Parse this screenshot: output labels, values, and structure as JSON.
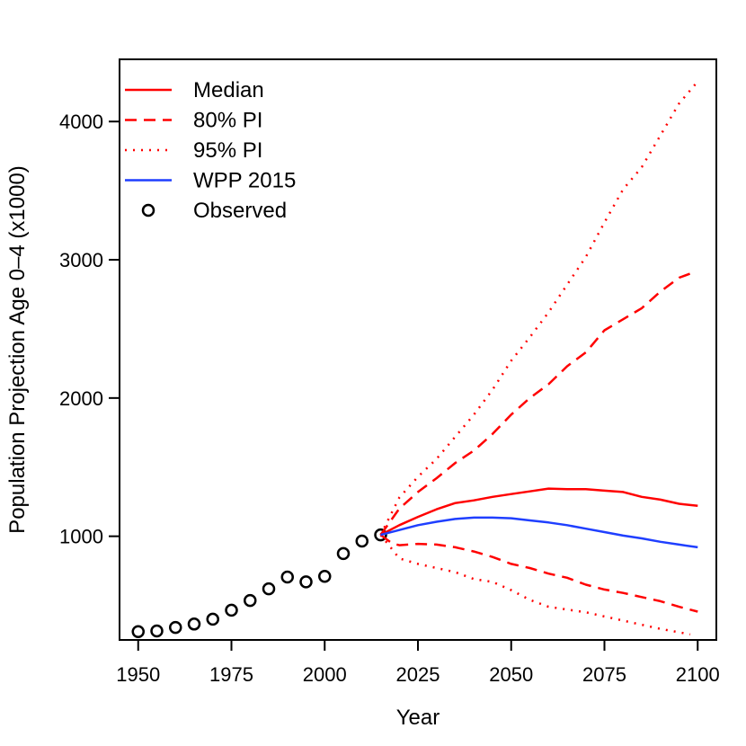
{
  "chart_data": {
    "type": "line",
    "xlabel": "Year",
    "ylabel": "Population Projection Age 0–4 (x1000)",
    "xlim": [
      1945,
      2105
    ],
    "ylim": [
      250,
      4450
    ],
    "x_ticks": [
      1950,
      1975,
      2000,
      2025,
      2050,
      2075,
      2100
    ],
    "y_ticks": [
      1000,
      2000,
      3000,
      4000
    ],
    "grid": false,
    "legend": {
      "position": "top-left",
      "entries": [
        {
          "label": "Median",
          "color": "#ff0000",
          "style": "solid",
          "marker": "none"
        },
        {
          "label": "80% PI",
          "color": "#ff0000",
          "style": "dashed",
          "marker": "none"
        },
        {
          "label": "95% PI",
          "color": "#ff0000",
          "style": "dotted",
          "marker": "none"
        },
        {
          "label": "WPP 2015",
          "color": "#1f3fff",
          "style": "solid",
          "marker": "none"
        },
        {
          "label": "Observed",
          "color": "#000000",
          "style": "none",
          "marker": "circle"
        }
      ]
    },
    "series": [
      {
        "name": "Observed",
        "color": "#000000",
        "style": "points",
        "x": [
          1950,
          1955,
          1960,
          1965,
          1970,
          1975,
          1980,
          1985,
          1990,
          1995,
          2000,
          2005,
          2010,
          2015
        ],
        "y": [
          310,
          315,
          340,
          365,
          400,
          465,
          535,
          620,
          705,
          670,
          710,
          875,
          965,
          1010
        ]
      },
      {
        "name": "Median",
        "color": "#ff0000",
        "style": "solid",
        "x": [
          2015,
          2020,
          2025,
          2030,
          2035,
          2040,
          2045,
          2050,
          2055,
          2060,
          2065,
          2070,
          2075,
          2080,
          2085,
          2090,
          2095,
          2100
        ],
        "y": [
          1010,
          1080,
          1140,
          1195,
          1240,
          1260,
          1285,
          1305,
          1325,
          1345,
          1340,
          1340,
          1330,
          1320,
          1285,
          1265,
          1235,
          1220
        ]
      },
      {
        "name": "80% PI",
        "color": "#ff0000",
        "style": "dashed",
        "x": [
          2015,
          2020,
          2025,
          2030,
          2035,
          2040,
          2045,
          2050,
          2055,
          2060,
          2065,
          2070,
          2075,
          2080,
          2085,
          2090,
          2095,
          2098
        ],
        "y": [
          1010,
          1200,
          1320,
          1420,
          1530,
          1620,
          1740,
          1880,
          2000,
          2100,
          2230,
          2330,
          2490,
          2570,
          2650,
          2770,
          2870,
          2900
        ]
      },
      {
        "name": "80% PI",
        "color": "#ff0000",
        "style": "dashed",
        "x": [
          2015,
          2018,
          2020,
          2025,
          2030,
          2035,
          2040,
          2045,
          2050,
          2055,
          2060,
          2065,
          2070,
          2075,
          2080,
          2085,
          2090,
          2095,
          2100
        ],
        "y": [
          1010,
          950,
          935,
          945,
          940,
          920,
          890,
          850,
          800,
          770,
          730,
          700,
          650,
          615,
          590,
          560,
          530,
          490,
          455
        ]
      },
      {
        "name": "95% PI",
        "color": "#ff0000",
        "style": "dotted",
        "x": [
          2015,
          2020,
          2025,
          2030,
          2035,
          2040,
          2045,
          2050,
          2055,
          2060,
          2065,
          2070,
          2075,
          2080,
          2085,
          2090,
          2095,
          2100
        ],
        "y": [
          1010,
          1280,
          1430,
          1560,
          1720,
          1880,
          2060,
          2270,
          2440,
          2620,
          2820,
          3020,
          3270,
          3510,
          3670,
          3900,
          4130,
          4290
        ]
      },
      {
        "name": "95% PI",
        "color": "#ff0000",
        "style": "dotted",
        "x": [
          2015,
          2020,
          2025,
          2030,
          2035,
          2040,
          2045,
          2050,
          2055,
          2060,
          2065,
          2070,
          2075,
          2080,
          2085,
          2090,
          2095,
          2098
        ],
        "y": [
          1010,
          840,
          800,
          770,
          740,
          690,
          670,
          610,
          540,
          490,
          470,
          450,
          420,
          390,
          360,
          330,
          305,
          290
        ]
      },
      {
        "name": "WPP 2015",
        "color": "#1f3fff",
        "style": "solid",
        "x": [
          2015,
          2020,
          2025,
          2030,
          2035,
          2040,
          2045,
          2050,
          2055,
          2060,
          2065,
          2070,
          2075,
          2080,
          2085,
          2090,
          2095,
          2100
        ],
        "y": [
          1010,
          1045,
          1080,
          1105,
          1125,
          1135,
          1135,
          1130,
          1115,
          1100,
          1080,
          1055,
          1030,
          1005,
          985,
          960,
          940,
          920
        ]
      }
    ]
  }
}
